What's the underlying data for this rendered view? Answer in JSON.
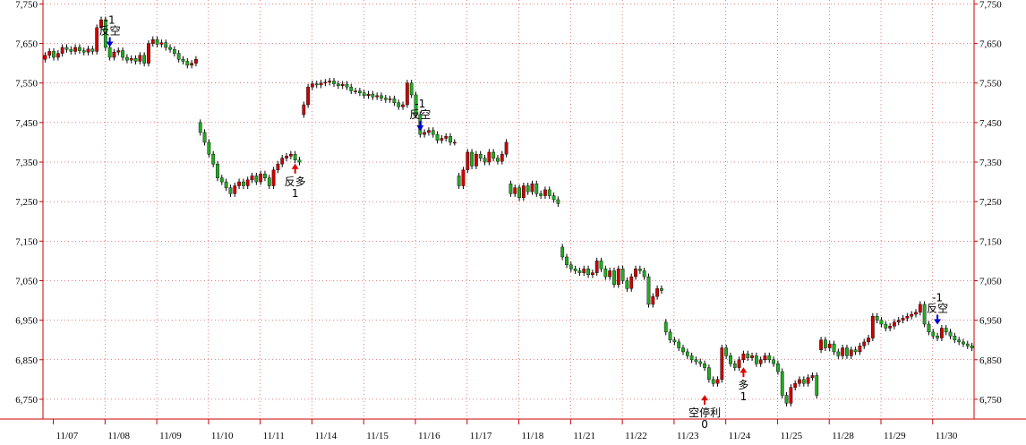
{
  "chart_data": {
    "type": "candlestick",
    "y_ticks": [
      7750,
      7650,
      7550,
      7450,
      7350,
      7250,
      7150,
      7050,
      6950,
      6850,
      6750
    ],
    "y_tick_labels": [
      "7,750",
      "7,650",
      "7,550",
      "7,450",
      "7,350",
      "7,250",
      "7,150",
      "7,050",
      "6,950",
      "6,850",
      "6,750"
    ],
    "ylim": [
      6700,
      7760
    ],
    "x_labels": [
      "11/07",
      "11/08",
      "11/09",
      "11/10",
      "11/11",
      "11/14",
      "11/15",
      "11/16",
      "11/17",
      "11/18",
      "11/21",
      "11/22",
      "11/23",
      "11/24",
      "11/25",
      "11/28",
      "11/29",
      "11/30"
    ],
    "bars_per_day": 12,
    "grid": "vertical-day-separators",
    "colors": {
      "up": "#cc0000",
      "down": "#22aa22",
      "axis": "#cc0000",
      "grid": "#cc0000",
      "short_arrow": "#0000cc",
      "long_arrow": "#dd0000"
    },
    "series_close": [
      [
        7620,
        7630,
        7615,
        7625,
        7640,
        7635,
        7630,
        7640,
        7632,
        7628,
        7636,
        7630
      ],
      [
        7690,
        7710,
        7640,
        7615,
        7628,
        7632,
        7615,
        7608,
        7612,
        7605,
        7620,
        7600
      ],
      [
        7650,
        7660,
        7648,
        7652,
        7640,
        7635,
        7625,
        7610,
        7605,
        7595,
        7600,
        7610
      ],
      [
        7425,
        7400,
        7370,
        7345,
        7310,
        7300,
        7285,
        7270,
        7290,
        7300,
        7290,
        7305
      ],
      [
        7315,
        7300,
        7320,
        7310,
        7290,
        7330,
        7345,
        7360,
        7365,
        7370,
        7355,
        7350
      ],
      [
        7495,
        7540,
        7548,
        7545,
        7550,
        7552,
        7555,
        7548,
        7543,
        7547,
        7540,
        7530
      ],
      [
        7530,
        7525,
        7518,
        7522,
        7515,
        7518,
        7512,
        7508,
        7510,
        7500,
        7490,
        7495
      ],
      [
        7550,
        7520,
        7470,
        7420,
        7425,
        7430,
        7420,
        7405,
        7410,
        7415,
        7400,
        7400
      ],
      [
        7290,
        7330,
        7375,
        7340,
        7370,
        7360,
        7350,
        7375,
        7360,
        7352,
        7370,
        7400
      ],
      [
        7270,
        7285,
        7260,
        7290,
        7275,
        7295,
        7270,
        7265,
        7280,
        7265,
        7255,
        7245
      ],
      [
        7110,
        7090,
        7080,
        7075,
        7070,
        7080,
        7065,
        7070,
        7100,
        7080,
        7060,
        7075
      ],
      [
        7040,
        7080,
        7050,
        7030,
        7060,
        7080,
        7075,
        7060,
        6990,
        7010,
        7030,
        7025
      ],
      [
        6920,
        6900,
        6895,
        6880,
        6870,
        6860,
        6850,
        6845,
        6840,
        6830,
        6800,
        6790
      ],
      [
        6800,
        6880,
        6860,
        6840,
        6830,
        6850,
        6865,
        6855,
        6860,
        6840,
        6850,
        6860
      ],
      [
        6850,
        6840,
        6820,
        6760,
        6740,
        6780,
        6790,
        6800,
        6790,
        6805,
        6810,
        6760
      ],
      [
        6900,
        6880,
        6890,
        6870,
        6860,
        6880,
        6860,
        6875,
        6870,
        6885,
        6895,
        6905
      ],
      [
        6960,
        6950,
        6940,
        6930,
        6935,
        6945,
        6950,
        6955,
        6960,
        6965,
        6970,
        6990
      ],
      [
        6940,
        6920,
        6910,
        6905,
        6930,
        6920,
        6910,
        6900,
        6895,
        6890,
        6885,
        6880
      ]
    ],
    "annotations": [
      {
        "day": 1,
        "bar": 3,
        "value": 7632,
        "direction": "short",
        "label": "反空",
        "count": "-1"
      },
      {
        "day": 4,
        "bar": 10,
        "value": 7355,
        "direction": "long",
        "label": "反多",
        "count": "1"
      },
      {
        "day": 7,
        "bar": 3,
        "value": 7420,
        "direction": "short",
        "label": "反空",
        "count": "-1"
      },
      {
        "day": 12,
        "bar": 9,
        "value": 6770,
        "direction": "long",
        "label": "空停利",
        "count": "0"
      },
      {
        "day": 13,
        "bar": 6,
        "value": 6840,
        "direction": "long",
        "label": "多",
        "count": "1"
      },
      {
        "day": 17,
        "bar": 3,
        "value": 6930,
        "direction": "short",
        "label": "反空",
        "count": "-1"
      }
    ]
  }
}
